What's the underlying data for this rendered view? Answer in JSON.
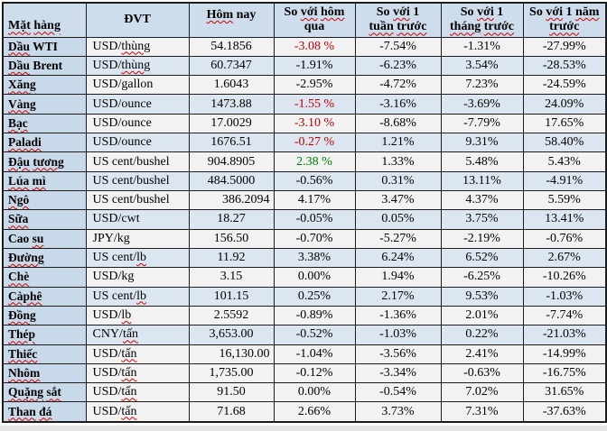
{
  "colors": {
    "header_bg": "#cdddec",
    "first_col_bg": "#c8d9ea",
    "row_blue_bg": "#dce6f1",
    "row_grey_bg": "#f2f2f2",
    "border": "#1c1c1c",
    "text": "#000000",
    "negative_red": "#c00000",
    "positive_green": "#008000",
    "squiggle": "#d00000"
  },
  "table": {
    "columns": [
      {
        "id": "name",
        "label": "Mặt hàng",
        "segments": [
          [
            "Mặt",
            true
          ],
          [
            " ",
            false
          ],
          [
            "hàng",
            true
          ]
        ]
      },
      {
        "id": "unit",
        "label": "ĐVT",
        "segments": [
          [
            "ĐVT",
            false
          ]
        ]
      },
      {
        "id": "today",
        "label": "Hôm nay",
        "segments": [
          [
            "Hôm",
            true
          ],
          [
            " nay",
            false
          ]
        ]
      },
      {
        "id": "chg",
        "label": "So với hôm qua",
        "segments": [
          [
            "So ",
            false
          ],
          [
            "với",
            true
          ],
          [
            " ",
            false
          ],
          [
            "hôm",
            true
          ],
          [
            "\nqua",
            false
          ]
        ]
      },
      {
        "id": "week",
        "label": "So với 1 tuần trước",
        "segments": [
          [
            "So ",
            false
          ],
          [
            "với",
            true
          ],
          [
            " 1\n",
            false
          ],
          [
            "tuần",
            true
          ],
          [
            " ",
            false
          ],
          [
            "trước",
            true
          ]
        ]
      },
      {
        "id": "month",
        "label": "So với 1 tháng trước",
        "segments": [
          [
            "So ",
            false
          ],
          [
            "với",
            true
          ],
          [
            " 1\n",
            false
          ],
          [
            "tháng",
            true
          ],
          [
            " ",
            false
          ],
          [
            "trước",
            true
          ]
        ]
      },
      {
        "id": "year",
        "label": "So với 1 năm trước",
        "segments": [
          [
            "So ",
            false
          ],
          [
            "với",
            true
          ],
          [
            " 1 ",
            false
          ],
          [
            "năm",
            true
          ],
          [
            "\n",
            false
          ],
          [
            "trước",
            true
          ]
        ]
      }
    ],
    "rows": [
      {
        "name": [
          [
            "Dầu",
            true
          ],
          [
            " WTI",
            false
          ]
        ],
        "unit": [
          [
            "USD/",
            false
          ],
          [
            "thùng",
            true
          ]
        ],
        "unit_label": "USD/thùng",
        "today": "54.1856",
        "chg": "-3.08 %",
        "chg_color": "negative_red",
        "week": "-7.54%",
        "month": "-1.31%",
        "year": "-27.99%",
        "shade": "grey"
      },
      {
        "name": [
          [
            "Dầu",
            true
          ],
          [
            " Brent",
            false
          ]
        ],
        "unit": [
          [
            "USD/",
            false
          ],
          [
            "thùng",
            true
          ]
        ],
        "unit_label": "USD/thùng",
        "today": "60.7347",
        "chg": "-1.91%",
        "week": "-6.23%",
        "month": "3.54%",
        "year": "-28.53%",
        "shade": "blue"
      },
      {
        "name": [
          [
            "Xăng",
            true
          ]
        ],
        "unit": [
          [
            "USD/gallon",
            false
          ]
        ],
        "unit_label": "USD/gallon",
        "today": "1.6043",
        "chg": "-2.95%",
        "week": "-4.72%",
        "month": "7.23%",
        "year": "-24.59%",
        "shade": "grey"
      },
      {
        "name": [
          [
            "Vàng",
            true
          ]
        ],
        "unit": [
          [
            "USD/ounce",
            false
          ]
        ],
        "unit_label": "USD/ounce",
        "today": "1473.88",
        "chg": "-1.55 %",
        "chg_color": "negative_red",
        "week": "-3.16%",
        "month": "-3.69%",
        "year": "24.09%",
        "shade": "blue"
      },
      {
        "name": [
          [
            "Bạc",
            true
          ]
        ],
        "unit": [
          [
            "USD/ounce",
            false
          ]
        ],
        "unit_label": "USD/ounce",
        "today": "17.0029",
        "chg": "-3.10 %",
        "chg_color": "negative_red",
        "week": "-8.68%",
        "month": "-7.79%",
        "year": "17.65%",
        "shade": "grey"
      },
      {
        "name": [
          [
            "Paladi",
            true
          ]
        ],
        "unit": [
          [
            "USD/ounce",
            false
          ]
        ],
        "unit_label": "USD/ounce",
        "today": "1676.51",
        "chg": "-0.27 %",
        "chg_color": "negative_red",
        "week": "1.21%",
        "month": "9.31%",
        "year": "58.40%",
        "shade": "blue"
      },
      {
        "name": [
          [
            "Đậu",
            true
          ],
          [
            " ",
            false
          ],
          [
            "tương",
            true
          ]
        ],
        "unit": [
          [
            "US cent/bushel",
            false
          ]
        ],
        "unit_label": "US cent/bushel",
        "today": "904.8905",
        "chg": "2.38 %",
        "chg_color": "positive_green",
        "week": "1.33%",
        "month": "5.48%",
        "year": "5.43%",
        "shade": "grey"
      },
      {
        "name": [
          [
            "Lúa",
            true
          ],
          [
            " ",
            false
          ],
          [
            "mì",
            true
          ]
        ],
        "unit": [
          [
            "US cent/bushel",
            false
          ]
        ],
        "unit_label": "US cent/bushel",
        "today": "484.5000",
        "chg": "-0.56%",
        "week": "0.31%",
        "month": "13.11%",
        "year": "-4.91%",
        "shade": "blue"
      },
      {
        "name": [
          [
            "Ngô",
            true
          ]
        ],
        "unit": [
          [
            "US cent/bushel",
            false
          ]
        ],
        "unit_label": "US cent/bushel",
        "today": "386.2094",
        "today_align": "right",
        "chg": "4.17%",
        "week": "3.47%",
        "month": "4.37%",
        "year": "5.59%",
        "shade": "grey"
      },
      {
        "name": [
          [
            "Sữa",
            true
          ]
        ],
        "unit": [
          [
            "USD/cwt",
            false
          ]
        ],
        "unit_label": "USD/cwt",
        "today": "18.27",
        "chg": "-0.05%",
        "week": "0.05%",
        "month": "3.75%",
        "year": "13.41%",
        "shade": "blue"
      },
      {
        "name": [
          [
            "Cao ",
            false
          ],
          [
            "su",
            true
          ]
        ],
        "unit": [
          [
            "JPY/kg",
            false
          ]
        ],
        "unit_label": "JPY/kg",
        "today": "156.50",
        "chg": "-0.70%",
        "week": "-5.27%",
        "month": "-2.19%",
        "year": "-0.76%",
        "shade": "grey"
      },
      {
        "name": [
          [
            "Đường",
            true
          ]
        ],
        "unit": [
          [
            "US cent/",
            false
          ],
          [
            "lb",
            true
          ]
        ],
        "unit_label": "US cent/lb",
        "today": "11.92",
        "chg": "3.38%",
        "week": "6.24%",
        "month": "6.52%",
        "year": "2.67%",
        "shade": "blue"
      },
      {
        "name": [
          [
            "Chè",
            true
          ]
        ],
        "unit": [
          [
            "USD/kg",
            false
          ]
        ],
        "unit_label": "USD/kg",
        "today": "3.15",
        "chg": "0.00%",
        "week": "1.94%",
        "month": "-6.25%",
        "year": "-10.26%",
        "shade": "grey"
      },
      {
        "name": [
          [
            "Càphê",
            true
          ]
        ],
        "unit": [
          [
            "US cent/",
            false
          ],
          [
            "lb",
            true
          ]
        ],
        "unit_label": "US cent/lb",
        "today": "101.15",
        "chg": "0.25%",
        "week": "2.17%",
        "month": "9.53%",
        "year": "-1.03%",
        "shade": "blue"
      },
      {
        "name": [
          [
            "Đồng",
            true
          ]
        ],
        "unit": [
          [
            "USD/",
            false
          ],
          [
            "lb",
            true
          ]
        ],
        "unit_label": "USD/lb",
        "today": "2.5592",
        "chg": "-0.89%",
        "week": "-1.36%",
        "month": "2.01%",
        "year": "-7.74%",
        "shade": "grey"
      },
      {
        "name": [
          [
            "Thép",
            true
          ]
        ],
        "unit": [
          [
            "CNY/",
            false
          ],
          [
            "tấn",
            true
          ]
        ],
        "unit_label": "CNY/tấn",
        "today": "3,653.00",
        "chg": "-0.52%",
        "week": "-1.03%",
        "month": "0.22%",
        "year": "-21.03%",
        "shade": "blue"
      },
      {
        "name": [
          [
            "Thiếc",
            true
          ]
        ],
        "unit": [
          [
            "USD/",
            false
          ],
          [
            "tấn",
            true
          ]
        ],
        "unit_label": "USD/tấn",
        "today": "16,130.00",
        "today_align": "right",
        "chg": "-1.04%",
        "week": "-3.56%",
        "month": "2.41%",
        "year": "-14.99%",
        "shade": "grey"
      },
      {
        "name": [
          [
            "Nhôm",
            true
          ]
        ],
        "unit": [
          [
            "USD/",
            false
          ],
          [
            "tấn",
            true
          ]
        ],
        "unit_label": "USD/tấn",
        "today": "1,735.00",
        "chg": "-0.12%",
        "week": "-3.34%",
        "month": "-0.63%",
        "year": "-16.75%",
        "shade": "grey"
      },
      {
        "name": [
          [
            "Quặng",
            true
          ],
          [
            " ",
            false
          ],
          [
            "sắt",
            true
          ]
        ],
        "unit": [
          [
            "USD/",
            false
          ],
          [
            "tấn",
            true
          ]
        ],
        "unit_label": "USD/tấn",
        "today": "91.50",
        "chg": "0.00%",
        "week": "-0.54%",
        "month": "7.02%",
        "year": "31.65%",
        "shade": "grey"
      },
      {
        "name": [
          [
            "Than",
            true
          ],
          [
            " ",
            false
          ],
          [
            "đá",
            true
          ]
        ],
        "unit": [
          [
            "USD/",
            false
          ],
          [
            "tấn",
            true
          ]
        ],
        "unit_label": "USD/tấn",
        "today": "71.68",
        "chg": "2.66%",
        "week": "3.73%",
        "month": "7.31%",
        "year": "-37.63%",
        "shade": "grey"
      }
    ]
  }
}
